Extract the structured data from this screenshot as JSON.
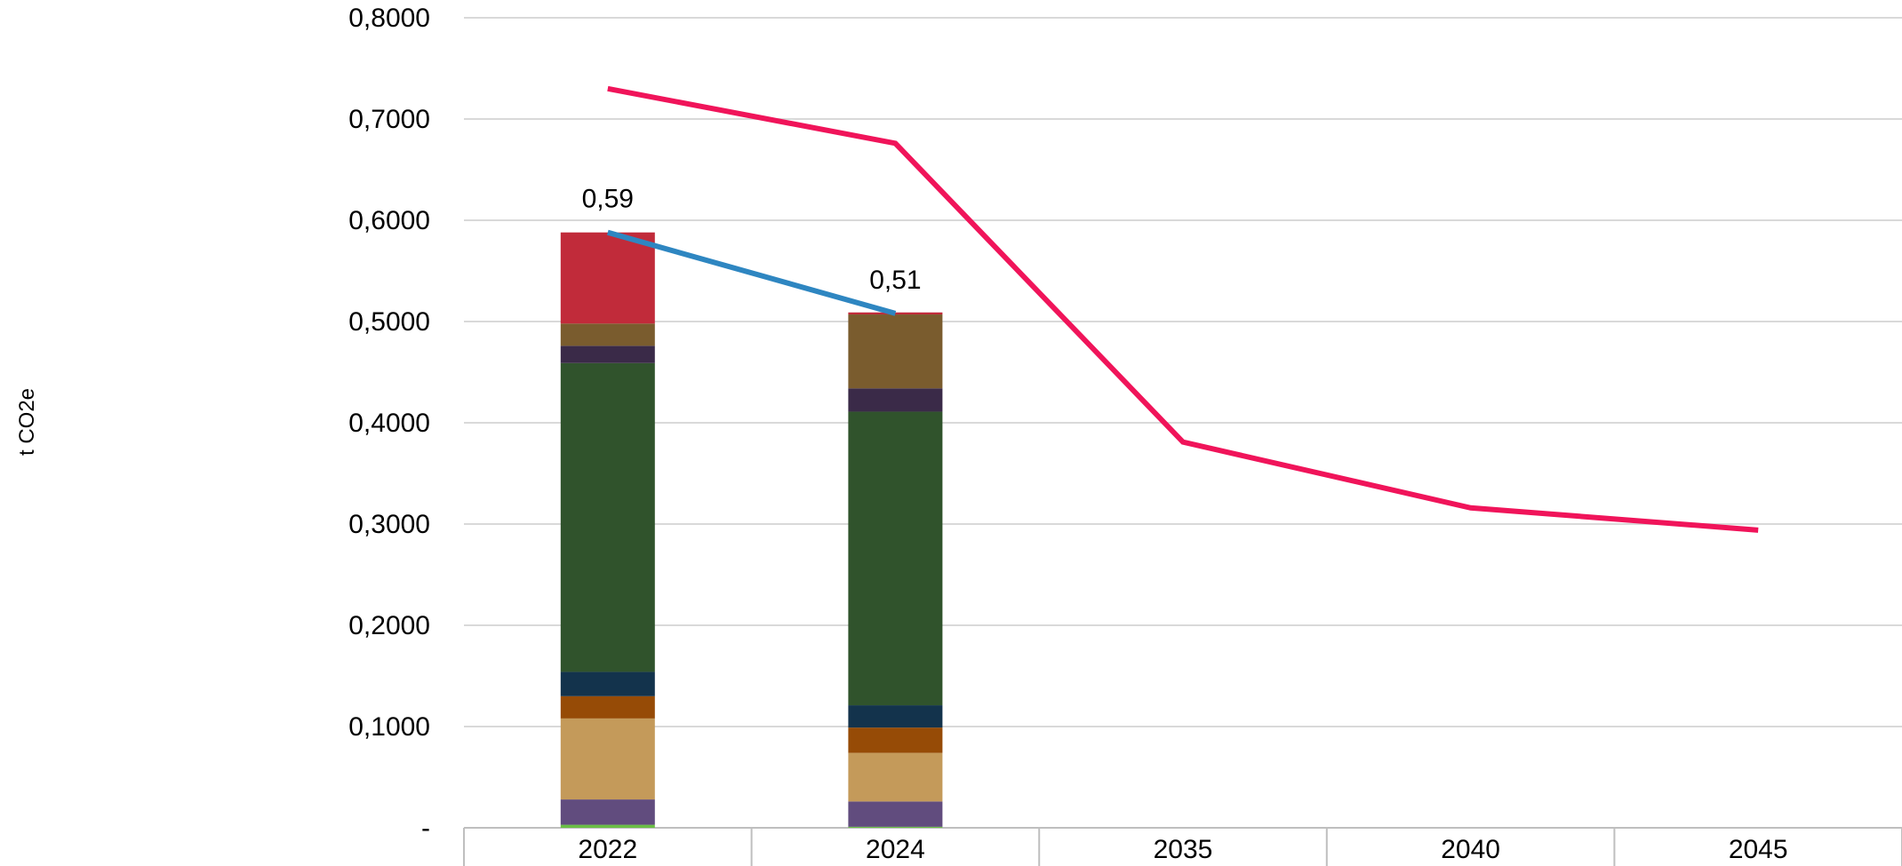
{
  "chart_data": {
    "type": "bar",
    "title": "",
    "ylabel": "t CO2e",
    "xlabel": "",
    "categories": [
      "2022",
      "2024",
      "2035",
      "2040",
      "2045"
    ],
    "ylim": [
      0,
      0.8
    ],
    "yticks": [
      0,
      0.1,
      0.2,
      0.3,
      0.4,
      0.5,
      0.6,
      0.7,
      0.8
    ],
    "ytick_labels": [
      "-",
      "0,1000",
      "0,2000",
      "0,3000",
      "0,4000",
      "0,5000",
      "0,6000",
      "0,7000",
      "0,8000"
    ],
    "grid": true,
    "legend": "none",
    "stacked": true,
    "series": [
      {
        "color": "#6abf45",
        "values": [
          0.003,
          0.001,
          null,
          null,
          null
        ]
      },
      {
        "color": "#614c7e",
        "values": [
          0.025,
          0.025,
          null,
          null,
          null
        ]
      },
      {
        "color": "#c49a5a",
        "values": [
          0.08,
          0.048,
          null,
          null,
          null
        ]
      },
      {
        "color": "#964b06",
        "values": [
          0.022,
          0.025,
          null,
          null,
          null
        ]
      },
      {
        "color": "#13334c",
        "values": [
          0.024,
          0.022,
          null,
          null,
          null
        ]
      },
      {
        "color": "#30532c",
        "values": [
          0.305,
          0.29,
          null,
          null,
          null
        ]
      },
      {
        "color": "#3a2a48",
        "values": [
          0.017,
          0.023,
          null,
          null,
          null
        ]
      },
      {
        "color": "#7a5c2e",
        "values": [
          0.022,
          0.073,
          null,
          null,
          null
        ]
      },
      {
        "color": "#c12b3a",
        "values": [
          0.09,
          0.002,
          null,
          null,
          null
        ]
      }
    ],
    "lines": [
      {
        "color": "#2e86c1",
        "values": [
          0.588,
          0.508,
          null,
          null,
          null
        ],
        "labels": [
          "0,59",
          "0,51",
          "",
          "",
          ""
        ]
      },
      {
        "color": "#f0145a",
        "values": [
          0.73,
          0.676,
          0.381,
          0.316,
          0.294
        ]
      }
    ]
  }
}
